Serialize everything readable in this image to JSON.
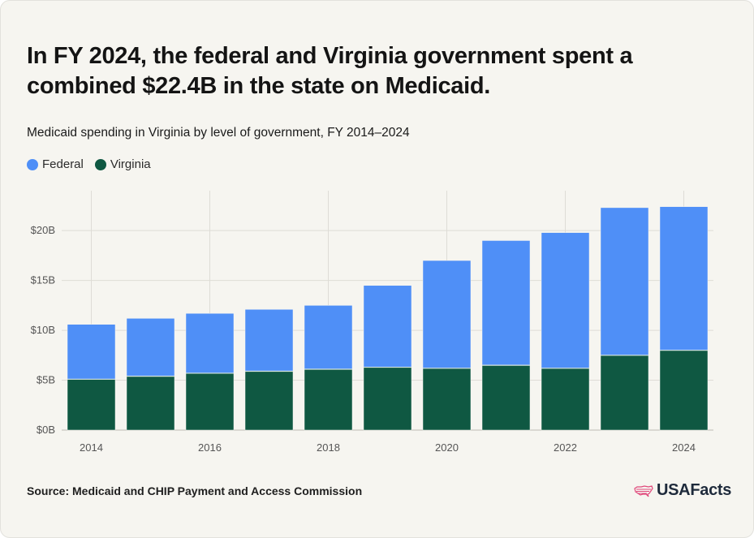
{
  "header": {
    "title": "In FY 2024, the federal and Virginia government spent a combined $22.4B in the state on Medicaid.",
    "subtitle": "Medicaid spending in Virginia by level of government, FY 2014–2024"
  },
  "legend": [
    {
      "label": "Federal",
      "color": "#4f8ff7"
    },
    {
      "label": "Virginia",
      "color": "#0f5842"
    }
  ],
  "footer": {
    "source": "Source: Medicaid and CHIP Payment and Access Commission",
    "brand": "USAFacts",
    "brand_icon": "us-map-icon"
  },
  "chart_data": {
    "type": "bar",
    "stacked": true,
    "categories": [
      "2014",
      "2015",
      "2016",
      "2017",
      "2018",
      "2019",
      "2020",
      "2021",
      "2022",
      "2023",
      "2024"
    ],
    "x_tick_labels": [
      "2014",
      "2016",
      "2018",
      "2020",
      "2022",
      "2024"
    ],
    "series": [
      {
        "name": "Virginia",
        "color": "#0f5842",
        "values": [
          5.1,
          5.4,
          5.7,
          5.9,
          6.1,
          6.3,
          6.2,
          6.5,
          6.2,
          7.5,
          8.0
        ]
      },
      {
        "name": "Federal",
        "color": "#4f8ff7",
        "values": [
          5.5,
          5.8,
          6.0,
          6.2,
          6.4,
          8.2,
          10.8,
          12.5,
          13.6,
          14.8,
          14.4
        ]
      }
    ],
    "ylim": [
      0,
      24
    ],
    "y_ticks": [
      0,
      5,
      10,
      15,
      20
    ],
    "y_tick_labels": [
      "$0B",
      "$5B",
      "$10B",
      "$15B",
      "$20B"
    ],
    "grid": true,
    "legend_position": "top-left"
  }
}
